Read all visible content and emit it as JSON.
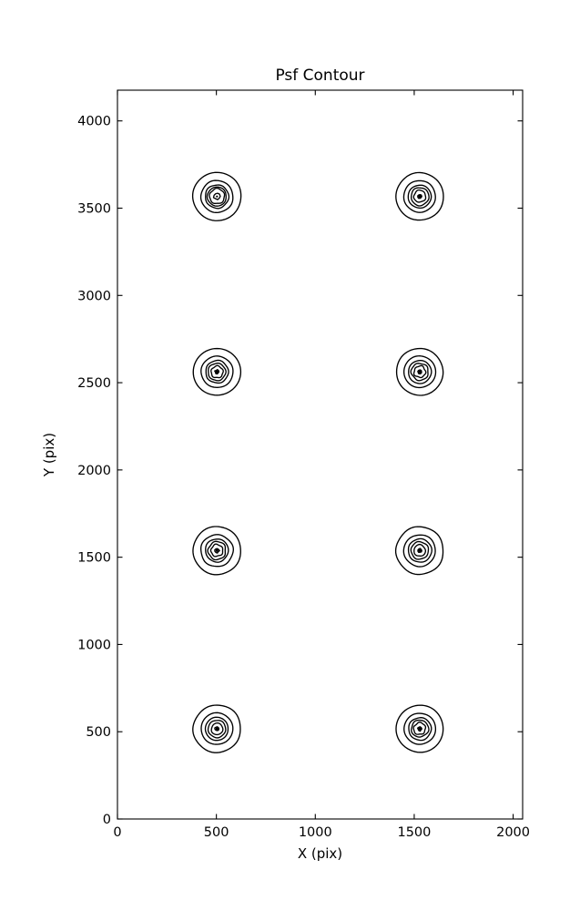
{
  "chart_data": {
    "type": "contour",
    "title": "Psf Contour",
    "xlabel": "X (pix)",
    "ylabel": "Y (pix)",
    "xlim": [
      0,
      2048
    ],
    "ylim": [
      0,
      4176
    ],
    "xticks": [
      0,
      500,
      1000,
      1500,
      2000
    ],
    "yticks": [
      0,
      500,
      1000,
      1500,
      2000,
      2500,
      3000,
      3500,
      4000
    ],
    "grid": false,
    "legend": "none",
    "line_color": "#000000",
    "background": "#ffffff",
    "tick_direction": "in",
    "clusters": [
      {
        "x": 503,
        "y": 517,
        "radii": [
          120,
          80,
          58,
          44,
          29,
          10
        ],
        "dot": 7
      },
      {
        "x": 1528,
        "y": 517,
        "radii": [
          119,
          79,
          57,
          43,
          30,
          10
        ],
        "dot": 7
      },
      {
        "x": 503,
        "y": 1538,
        "radii": [
          121,
          81,
          58,
          45,
          30,
          11
        ],
        "dot": 7
      },
      {
        "x": 1528,
        "y": 1538,
        "radii": [
          120,
          80,
          59,
          44,
          29,
          10
        ],
        "dot": 7
      },
      {
        "x": 503,
        "y": 2562,
        "radii": [
          119,
          80,
          57,
          44,
          30,
          10
        ],
        "dot": 7
      },
      {
        "x": 1528,
        "y": 2562,
        "radii": [
          118,
          80,
          58,
          43,
          29,
          10
        ],
        "dot": 7
      },
      {
        "x": 503,
        "y": 3567,
        "radii": [
          122,
          81,
          59,
          48,
          38,
          16
        ],
        "dot": 5
      },
      {
        "x": 1528,
        "y": 3567,
        "radii": [
          120,
          80,
          58,
          45,
          30,
          10
        ],
        "dot": 7
      }
    ]
  }
}
